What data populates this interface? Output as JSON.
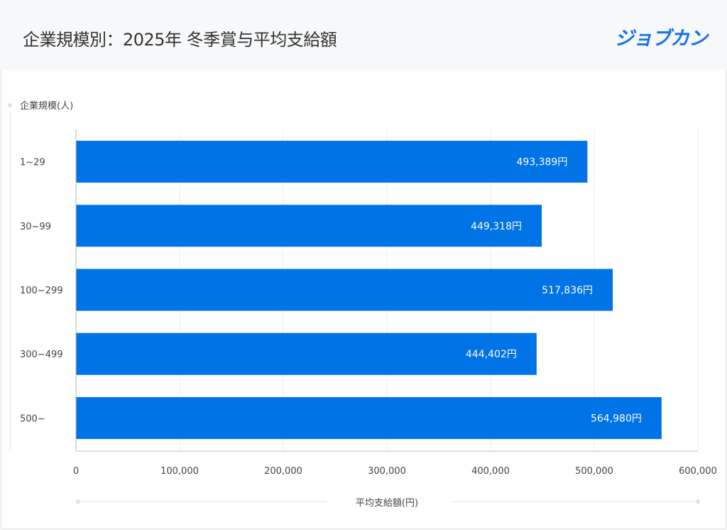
{
  "header": {
    "title": "企業規模別：2025年 冬季賞与平均支給額",
    "logo": "ジョブカン"
  },
  "chart_data": {
    "type": "bar",
    "orientation": "horizontal",
    "title": "企業規模別：2025年 冬季賞与平均支給額",
    "ylabel": "企業規模(人)",
    "xlabel": "平均支給額(円)",
    "categories": [
      "1~29",
      "30~99",
      "100~299",
      "300~499",
      "500~"
    ],
    "values": [
      493389,
      449318,
      517836,
      444402,
      564980
    ],
    "data_labels": [
      "493,389円",
      "449,318円",
      "517,836円",
      "444,402円",
      "564,980円"
    ],
    "xlim": [
      0,
      600000
    ],
    "xticks": [
      "0",
      "100,000",
      "200,000",
      "300,000",
      "400,000",
      "500,000",
      "600,000"
    ],
    "grid": true,
    "bar_color": "#0073e6"
  }
}
